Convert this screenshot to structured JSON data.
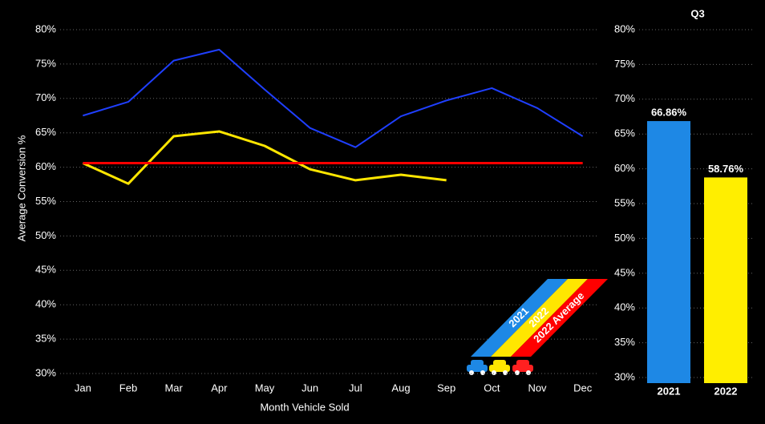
{
  "chart_data": [
    {
      "type": "line",
      "x_label": "Month Vehicle Sold",
      "y_label": "Average Conversion %",
      "categories": [
        "Jan",
        "Feb",
        "Mar",
        "Apr",
        "May",
        "Jun",
        "Jul",
        "Aug",
        "Sep",
        "Oct",
        "Nov",
        "Dec"
      ],
      "series": [
        {
          "name": "2021",
          "color": "#1f3fff",
          "legend_color": "#1e88e5",
          "values": [
            67.5,
            69.5,
            75.5,
            77.1,
            71.3,
            65.7,
            62.9,
            67.4,
            69.7,
            71.5,
            68.6,
            64.5
          ]
        },
        {
          "name": "2022",
          "color": "#ffe600",
          "legend_color": "#ffe600",
          "values": [
            60.6,
            57.6,
            64.5,
            65.2,
            63.1,
            59.7,
            58.1,
            58.9,
            58.1,
            null,
            null,
            null
          ]
        },
        {
          "name": "2022 Average",
          "color": "#ff0000",
          "legend_color": "#ff0000",
          "values": [
            60.6,
            60.6,
            60.6,
            60.6,
            60.6,
            60.6,
            60.6,
            60.6,
            60.6,
            60.6,
            60.6,
            60.6
          ]
        }
      ],
      "ylim": [
        30,
        80
      ],
      "yticks": [
        {
          "value": 30,
          "label": "30%"
        },
        {
          "value": 35,
          "label": "35%"
        },
        {
          "value": 40,
          "label": "40%"
        },
        {
          "value": 45,
          "label": "45%"
        },
        {
          "value": 50,
          "label": "50%"
        },
        {
          "value": 55,
          "label": "55%"
        },
        {
          "value": 60,
          "label": "60%"
        },
        {
          "value": 65,
          "label": "65%"
        },
        {
          "value": 70,
          "label": "70%"
        },
        {
          "value": 75,
          "label": "75%"
        },
        {
          "value": 80,
          "label": "80%"
        }
      ],
      "grid": true
    },
    {
      "type": "bar",
      "title": "Q3",
      "categories": [
        "2021",
        "2022"
      ],
      "values": [
        66.86,
        58.76
      ],
      "value_labels": [
        "66.86%",
        "58.76%"
      ],
      "colors": [
        "#1e88e5",
        "#ffee00"
      ],
      "ylim": [
        29.2,
        80
      ],
      "yticks": [
        {
          "value": 30,
          "label": "30%"
        },
        {
          "value": 35,
          "label": "35%"
        },
        {
          "value": 40,
          "label": "40%"
        },
        {
          "value": 45,
          "label": "45%"
        },
        {
          "value": 50,
          "label": "50%"
        },
        {
          "value": 55,
          "label": "55%"
        },
        {
          "value": 60,
          "label": "60%"
        },
        {
          "value": 65,
          "label": "65%"
        },
        {
          "value": 70,
          "label": "70%"
        },
        {
          "value": 75,
          "label": "75%"
        },
        {
          "value": 80,
          "label": "80%"
        }
      ],
      "grid": true
    }
  ]
}
